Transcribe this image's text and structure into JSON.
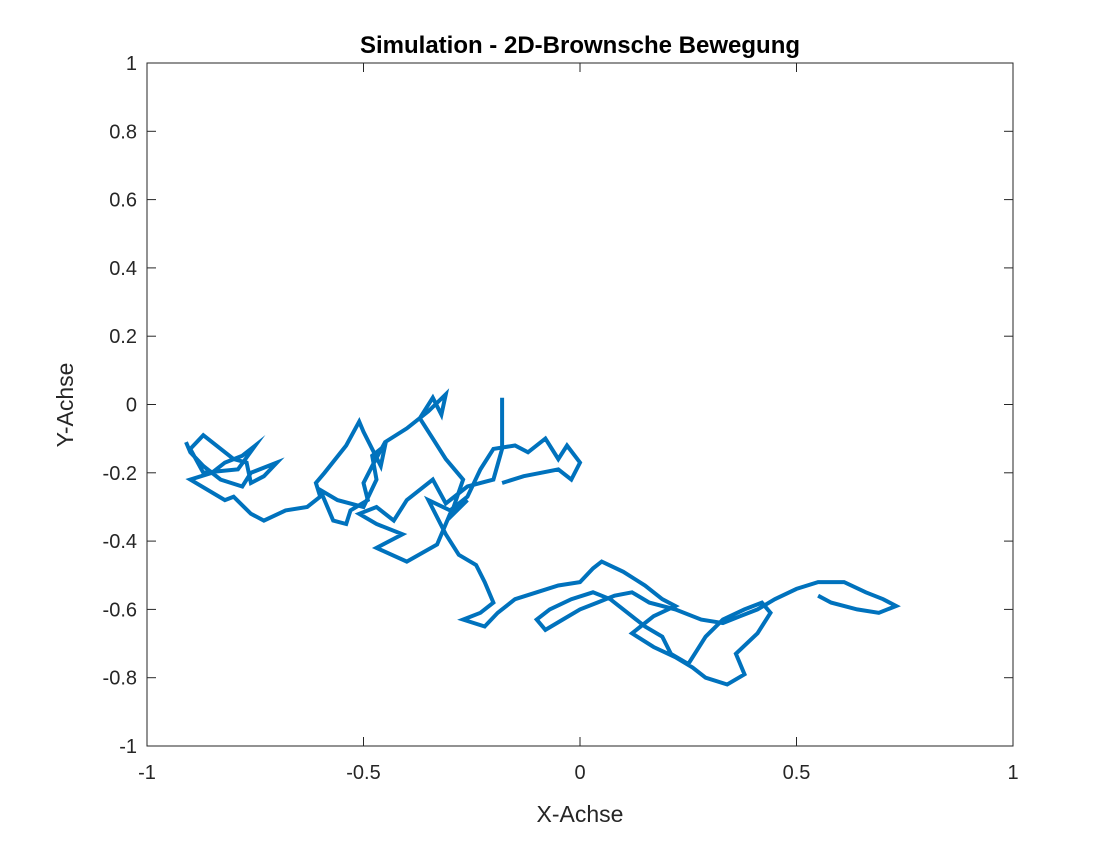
{
  "chart_data": {
    "type": "line",
    "title": "Simulation - 2D-Brownsche Bewegung",
    "xlabel": "X-Achse",
    "ylabel": "Y-Achse",
    "xlim": [
      -1,
      1
    ],
    "ylim": [
      -1,
      1
    ],
    "xticks": [
      -1,
      -0.5,
      0,
      0.5,
      1
    ],
    "xtick_labels": [
      "-1",
      "-0.5",
      "0",
      "0.5",
      "1"
    ],
    "yticks": [
      -1,
      -0.8,
      -0.6,
      -0.4,
      -0.2,
      0,
      0.2,
      0.4,
      0.6,
      0.8,
      1
    ],
    "ytick_labels": [
      "-1",
      "-0.8",
      "-0.6",
      "-0.4",
      "-0.2",
      "0",
      "0.2",
      "0.4",
      "0.6",
      "0.8",
      "1"
    ],
    "grid": false,
    "line_color": "#0072BD",
    "series": [
      {
        "x": [
          -0.18,
          -0.18,
          -0.2,
          -0.26,
          -0.31,
          -0.34,
          -0.4,
          -0.43,
          -0.47,
          -0.51,
          -0.47,
          -0.41,
          -0.47,
          -0.4,
          -0.33,
          -0.3,
          -0.26,
          -0.3,
          -0.27,
          -0.31,
          -0.34,
          -0.37,
          -0.34,
          -0.32,
          -0.31,
          -0.35,
          -0.4,
          -0.45,
          -0.48,
          -0.5,
          -0.49,
          -0.53,
          -0.54,
          -0.57,
          -0.6,
          -0.56,
          -0.5,
          -0.47,
          -0.48,
          -0.45,
          -0.46,
          -0.5,
          -0.51,
          -0.54,
          -0.59,
          -0.61,
          -0.6,
          -0.63,
          -0.68,
          -0.73,
          -0.76,
          -0.8,
          -0.82,
          -0.9,
          -0.85,
          -0.82,
          -0.78,
          -0.75,
          -0.79,
          -0.87,
          -0.9,
          -0.87,
          -0.8,
          -0.77,
          -0.76,
          -0.73,
          -0.7,
          -0.76,
          -0.78,
          -0.83,
          -0.87,
          -0.9,
          -0.91
        ],
        "y": [
          0.02,
          -0.13,
          -0.22,
          -0.24,
          -0.29,
          -0.22,
          -0.28,
          -0.34,
          -0.3,
          -0.32,
          -0.35,
          -0.38,
          -0.42,
          -0.46,
          -0.41,
          -0.32,
          -0.28,
          -0.33,
          -0.22,
          -0.16,
          -0.1,
          -0.04,
          0.02,
          -0.03,
          0.03,
          -0.02,
          -0.07,
          -0.11,
          -0.18,
          -0.23,
          -0.28,
          -0.31,
          -0.35,
          -0.34,
          -0.25,
          -0.28,
          -0.3,
          -0.22,
          -0.15,
          -0.12,
          -0.18,
          -0.08,
          -0.05,
          -0.12,
          -0.2,
          -0.23,
          -0.27,
          -0.3,
          -0.31,
          -0.34,
          -0.32,
          -0.27,
          -0.28,
          -0.22,
          -0.2,
          -0.17,
          -0.15,
          -0.12,
          -0.19,
          -0.2,
          -0.13,
          -0.09,
          -0.16,
          -0.17,
          -0.23,
          -0.21,
          -0.17,
          -0.2,
          -0.24,
          -0.22,
          -0.18,
          -0.14,
          -0.11
        ]
      },
      {
        "x": [
          -0.18,
          -0.13,
          -0.09,
          -0.05,
          -0.02,
          0.0,
          -0.03,
          -0.05,
          -0.08,
          -0.12,
          -0.15,
          -0.2,
          -0.23,
          -0.26,
          -0.3,
          -0.35,
          -0.31,
          -0.28,
          -0.24,
          -0.22,
          -0.2,
          -0.23,
          -0.27,
          -0.22,
          -0.19,
          -0.15,
          -0.1,
          -0.05,
          0.0,
          0.03,
          0.05,
          0.1,
          0.15,
          0.19,
          0.22,
          0.17,
          0.14,
          0.12,
          0.17,
          0.22,
          0.26,
          0.29,
          0.34,
          0.38,
          0.36,
          0.41,
          0.44,
          0.42,
          0.38,
          0.33,
          0.29,
          0.27,
          0.25,
          0.21,
          0.19,
          0.15,
          0.11,
          0.07,
          0.03,
          -0.02,
          -0.07,
          -0.1,
          -0.08,
          -0.04,
          0.0,
          0.04,
          0.08,
          0.12,
          0.16,
          0.22,
          0.28,
          0.33,
          0.37,
          0.41,
          0.45,
          0.5,
          0.55,
          0.61,
          0.66,
          0.7,
          0.73,
          0.69,
          0.64,
          0.58,
          0.55
        ],
        "y": [
          -0.23,
          -0.21,
          -0.2,
          -0.19,
          -0.22,
          -0.17,
          -0.12,
          -0.16,
          -0.1,
          -0.14,
          -0.12,
          -0.13,
          -0.19,
          -0.27,
          -0.31,
          -0.28,
          -0.38,
          -0.44,
          -0.47,
          -0.52,
          -0.58,
          -0.61,
          -0.63,
          -0.65,
          -0.61,
          -0.57,
          -0.55,
          -0.53,
          -0.52,
          -0.48,
          -0.46,
          -0.49,
          -0.53,
          -0.57,
          -0.59,
          -0.62,
          -0.65,
          -0.67,
          -0.71,
          -0.74,
          -0.77,
          -0.8,
          -0.82,
          -0.79,
          -0.73,
          -0.67,
          -0.61,
          -0.58,
          -0.6,
          -0.63,
          -0.68,
          -0.72,
          -0.76,
          -0.73,
          -0.68,
          -0.65,
          -0.61,
          -0.57,
          -0.55,
          -0.57,
          -0.6,
          -0.63,
          -0.66,
          -0.63,
          -0.6,
          -0.58,
          -0.56,
          -0.55,
          -0.58,
          -0.6,
          -0.63,
          -0.64,
          -0.62,
          -0.6,
          -0.57,
          -0.54,
          -0.52,
          -0.52,
          -0.55,
          -0.57,
          -0.59,
          -0.61,
          -0.6,
          -0.58,
          -0.56
        ]
      }
    ]
  }
}
